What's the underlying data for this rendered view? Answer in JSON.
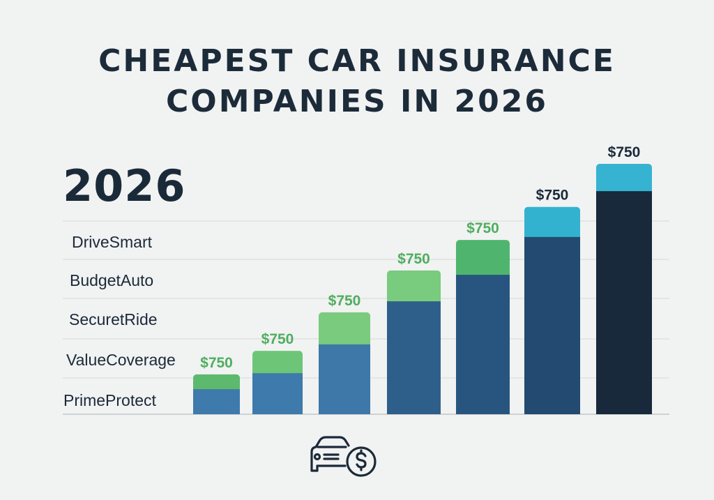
{
  "title_lines": [
    "CHEAPEST CAR INSURANCE",
    "COMPANIES IN 2026"
  ],
  "year_label": "2026",
  "icon": "car-dollar-icon",
  "chart_data": {
    "type": "bar",
    "stacked": true,
    "title": "CHEAPEST CAR INSURANCE COMPANIES IN 2026",
    "row_labels": [
      "DriveSmart",
      "BudgetAuto",
      "SecuretRide",
      "ValueCoverage",
      "PrimeProtect"
    ],
    "grid": true,
    "value_unit": "relative height, tallest bar = 100",
    "bars": [
      {
        "label": "$750",
        "base": 10.0,
        "top": 5.9,
        "base_color": "#3e7aab",
        "top_color": "#5cb96e",
        "label_color": "#4fae5f"
      },
      {
        "label": "$750",
        "base": 16.4,
        "top": 8.9,
        "base_color": "#3e7aab",
        "top_color": "#6dc677",
        "label_color": "#4fae5f"
      },
      {
        "label": "$750",
        "base": 27.9,
        "top": 12.8,
        "base_color": "#3d78a8",
        "top_color": "#7acb7e",
        "label_color": "#4fae5f"
      },
      {
        "label": "$750",
        "base": 45.1,
        "top": 12.3,
        "base_color": "#2e5f8a",
        "top_color": "#79cb7e",
        "label_color": "#4fae5f"
      },
      {
        "label": "$750",
        "base": 55.7,
        "top": 13.9,
        "base_color": "#28557f",
        "top_color": "#4fb56e",
        "label_color": "#4fae5f"
      },
      {
        "label": "$750",
        "base": 70.8,
        "top": 12.0,
        "base_color": "#234a70",
        "top_color": "#33b2cf",
        "label_color": "#1b2a38"
      },
      {
        "label": "$750",
        "base": 89.1,
        "top": 10.9,
        "base_color": "#17293b",
        "top_color": "#35b3d1",
        "label_color": "#1b2a38"
      }
    ]
  }
}
